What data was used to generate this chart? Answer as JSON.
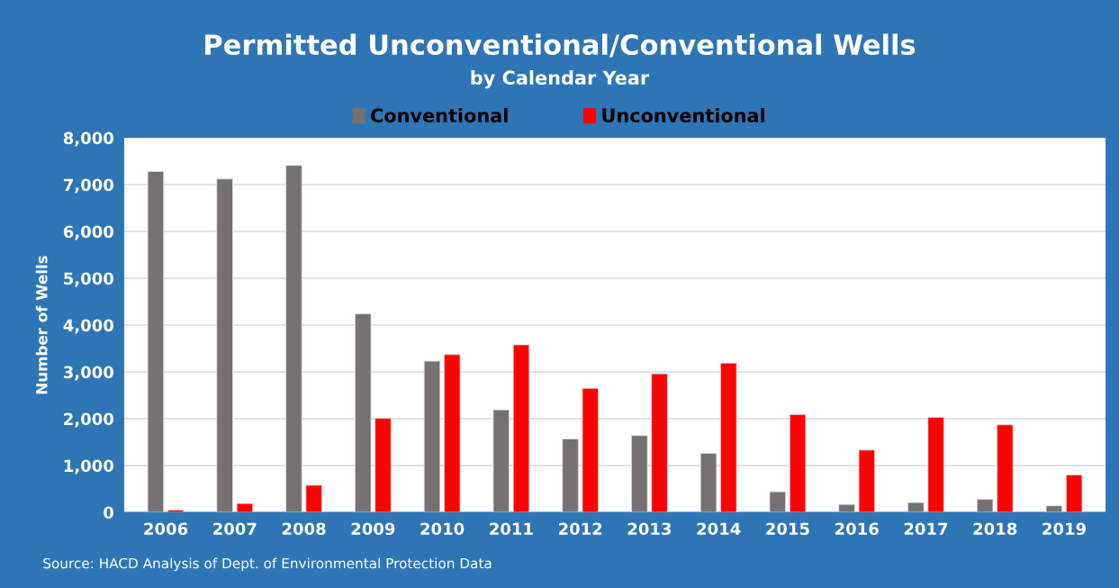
{
  "chart_data": {
    "type": "bar",
    "title": "Permitted Unconventional/Conventional Wells",
    "subtitle": "by Calendar Year",
    "ylabel": "Number of Wells",
    "categories": [
      "2006",
      "2007",
      "2008",
      "2009",
      "2010",
      "2011",
      "2012",
      "2013",
      "2014",
      "2015",
      "2016",
      "2017",
      "2018",
      "2019"
    ],
    "series": [
      {
        "name": "Conventional",
        "color": "#767171",
        "values": [
          7280,
          7120,
          7410,
          4240,
          3230,
          2190,
          1570,
          1640,
          1260,
          440,
          170,
          210,
          280,
          140
        ]
      },
      {
        "name": "Unconventional",
        "color": "#ff0000",
        "values": [
          50,
          190,
          580,
          2010,
          3370,
          3580,
          2650,
          2960,
          3190,
          2090,
          1330,
          2030,
          1870,
          800
        ]
      }
    ],
    "ylim": [
      0,
      8000
    ],
    "yticks": [
      {
        "value": 0,
        "label": "0"
      },
      {
        "value": 1000,
        "label": "1,000"
      },
      {
        "value": 2000,
        "label": "2,000"
      },
      {
        "value": 3000,
        "label": "3,000"
      },
      {
        "value": 4000,
        "label": "4,000"
      },
      {
        "value": 5000,
        "label": "5,000"
      },
      {
        "value": 6000,
        "label": "6,000"
      },
      {
        "value": 7000,
        "label": "7,000"
      },
      {
        "value": 8000,
        "label": "8,000"
      }
    ],
    "grid": "y",
    "legend": "top",
    "annotations": [
      "Source: HACD Analysis of Dept. of Environmental Protection Data"
    ]
  }
}
